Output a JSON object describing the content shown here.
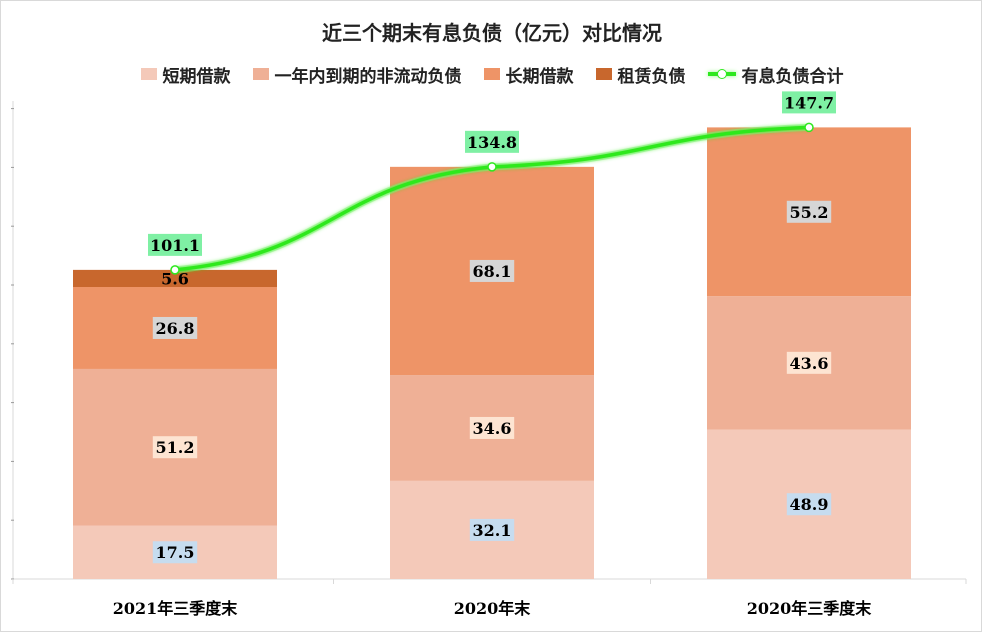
{
  "chart_data": {
    "type": "bar",
    "title": "近三个期末有息负债（亿元）对比情况",
    "categories": [
      "2021年三季度末",
      "2020年末",
      "2020年三季度末"
    ],
    "series": [
      {
        "name": "短期借款",
        "values": [
          17.5,
          32.1,
          48.9
        ],
        "color": "#f4c9b9",
        "label_bg": "#c6dcef"
      },
      {
        "name": "一年内到期的非流动负债",
        "values": [
          51.2,
          34.6,
          43.6
        ],
        "color": "#efb096",
        "label_bg": "#fde4d2"
      },
      {
        "name": "长期借款",
        "values": [
          26.8,
          68.1,
          55.2
        ],
        "color": "#ee9467",
        "label_bg": "#d6d6d6"
      },
      {
        "name": "租赁负债",
        "values": [
          5.6,
          null,
          null
        ],
        "color": "#c8672d",
        "label_bg": ""
      }
    ],
    "line_series": {
      "name": "有息负债合计",
      "values": [
        101.1,
        134.8,
        147.7
      ],
      "color": "#2ee81f",
      "label_bg": "#7ff0a4"
    },
    "ylim": [
      0,
      150
    ],
    "grid": false,
    "legend_position": "top"
  }
}
